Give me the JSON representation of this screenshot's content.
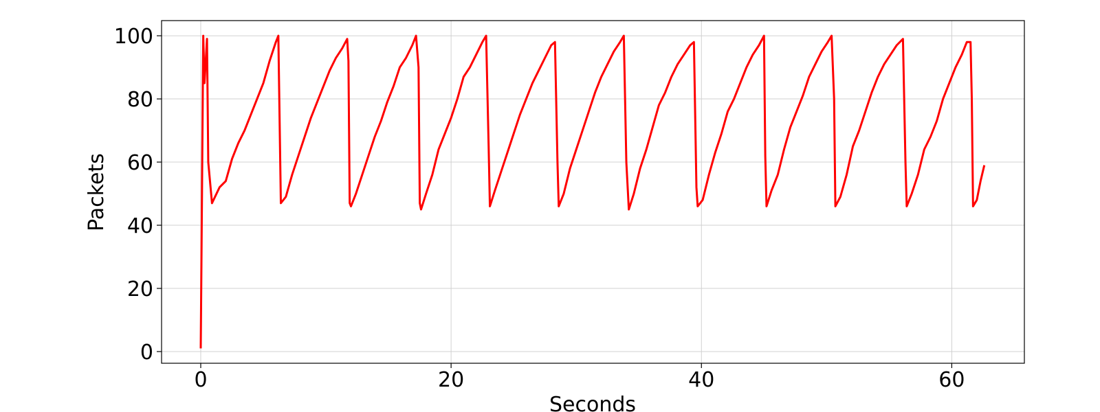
{
  "chart_data": {
    "type": "line",
    "xlabel": "Seconds",
    "ylabel": "Packets",
    "x": [
      0,
      0.2,
      0.3,
      0.5,
      0.6,
      0.9,
      1.5,
      2,
      2.5,
      3,
      3.5,
      4,
      4.5,
      5,
      5.5,
      6,
      6.2,
      6.4,
      6.8,
      7.3,
      7.8,
      8.3,
      8.8,
      9.3,
      9.8,
      10.3,
      10.8,
      11.3,
      11.7,
      11.8,
      11.9,
      12.0,
      12.4,
      12.9,
      13.4,
      13.9,
      14.4,
      14.9,
      15.4,
      15.9,
      16.4,
      16.9,
      17.2,
      17.4,
      17.5,
      17.6,
      18.0,
      18.5,
      19.0,
      19.5,
      20.0,
      20.5,
      21.0,
      21.5,
      22.0,
      22.5,
      22.8,
      23.0,
      23.1,
      23.5,
      24.0,
      24.5,
      25.0,
      25.5,
      26.0,
      26.5,
      27.0,
      27.5,
      28.0,
      28.3,
      28.5,
      28.6,
      29.0,
      29.5,
      30.0,
      30.5,
      31.0,
      31.5,
      32.0,
      32.5,
      33.0,
      33.5,
      33.8,
      34.0,
      34.2,
      34.6,
      35.1,
      35.6,
      36.1,
      36.6,
      37.1,
      37.6,
      38.1,
      38.6,
      39.1,
      39.4,
      39.6,
      39.7,
      40.1,
      40.6,
      41.1,
      41.6,
      42.1,
      42.6,
      43.1,
      43.6,
      44.1,
      44.6,
      45.0,
      45.1,
      45.2,
      45.6,
      46.1,
      46.6,
      47.1,
      47.6,
      48.1,
      48.6,
      49.1,
      49.6,
      50.1,
      50.4,
      50.6,
      50.7,
      51.1,
      51.6,
      52.1,
      52.6,
      53.1,
      53.6,
      54.1,
      54.6,
      55.1,
      55.6,
      56.1,
      56.3,
      56.4,
      56.8,
      57.3,
      57.8,
      58.3,
      58.8,
      59.3,
      59.8,
      60.3,
      60.8,
      61.2,
      61.5,
      61.6,
      61.7,
      62.0,
      62.3,
      62.6
    ],
    "series": [
      {
        "name": "Packets",
        "color": "#ff0000",
        "values": [
          1,
          100,
          85,
          99,
          60,
          47,
          52,
          54,
          61,
          66,
          70,
          75,
          80,
          85,
          92,
          98,
          100,
          47,
          49,
          56,
          62,
          68,
          74,
          79,
          84,
          89,
          93,
          96,
          99,
          92,
          47,
          46,
          50,
          56,
          62,
          68,
          73,
          79,
          84,
          90,
          93,
          97,
          100,
          90,
          47,
          45,
          50,
          56,
          64,
          69,
          74,
          80,
          87,
          90,
          94,
          98,
          100,
          65,
          46,
          51,
          57,
          63,
          69,
          75,
          80,
          85,
          89,
          93,
          97,
          98,
          60,
          46,
          50,
          58,
          64,
          70,
          76,
          82,
          87,
          91,
          95,
          98,
          100,
          60,
          45,
          50,
          58,
          64,
          71,
          78,
          82,
          87,
          91,
          94,
          97,
          98,
          52,
          46,
          48,
          56,
          63,
          69,
          76,
          80,
          85,
          90,
          94,
          97,
          100,
          62,
          46,
          51,
          56,
          64,
          71,
          76,
          81,
          87,
          91,
          95,
          98,
          100,
          80,
          46,
          49,
          56,
          65,
          70,
          76,
          82,
          87,
          91,
          94,
          97,
          99,
          60,
          46,
          50,
          56,
          64,
          68,
          73,
          80,
          85,
          90,
          94,
          98,
          98,
          80,
          46,
          48,
          54,
          59
        ]
      }
    ],
    "xlim": [
      -3.13,
      65.8
    ],
    "ylim": [
      -3.7,
      104.8
    ],
    "xticks": [
      0,
      20,
      40,
      60
    ],
    "yticks": [
      0,
      20,
      40,
      60,
      80,
      100
    ],
    "grid": true
  }
}
